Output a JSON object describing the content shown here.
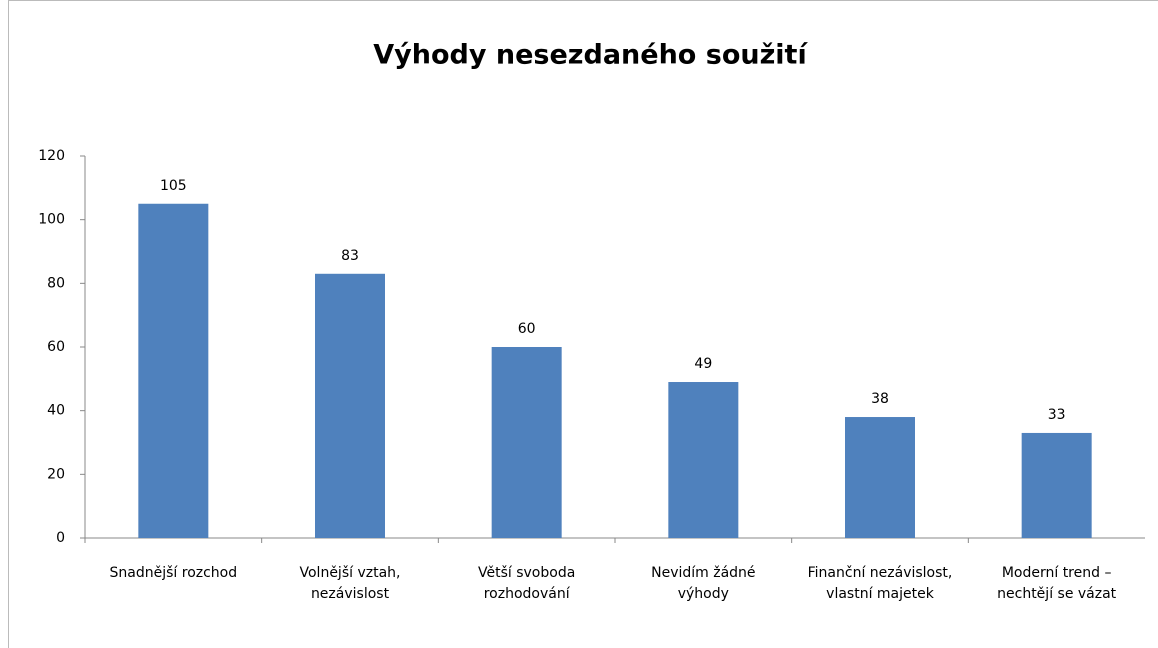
{
  "chart_data": {
    "type": "bar",
    "title": "Výhody nesezdaného soužití",
    "categories": [
      "Snadnější rozchod",
      "Volnější vztah, nezávislost",
      "Větší svoboda rozhodování",
      "Nevidím žádné výhody",
      "Finanční nezávislost, vlastní majetek",
      "Moderní trend – nechtějí se vázat"
    ],
    "values": [
      105,
      83,
      60,
      49,
      38,
      33
    ],
    "color": "#4f81bd",
    "ylim": [
      0,
      120
    ],
    "yticks": [
      0,
      20,
      40,
      60,
      80,
      100,
      120
    ],
    "grid": false
  }
}
